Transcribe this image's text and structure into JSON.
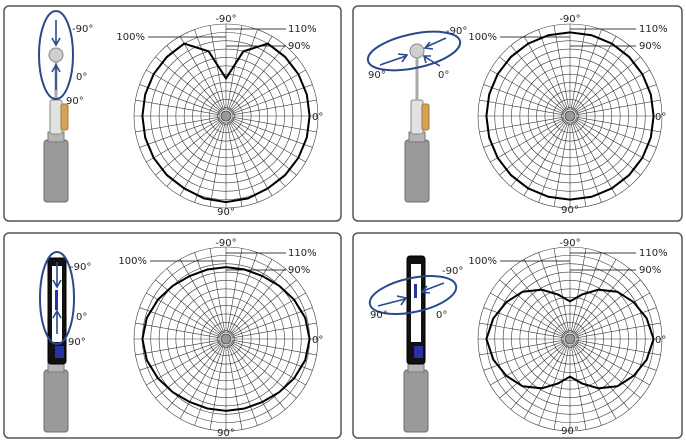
{
  "colors": {
    "callout": "#2a4a8e",
    "grid": "#3a3a3a",
    "curve": "#000000",
    "frame": "#555555",
    "body_gray": "#9a9a9a",
    "accent_orange": "#d4a35a",
    "accent_blue": "#2431a8"
  },
  "panels": [
    {
      "id": "panel-top-left",
      "device": "rod-vertical",
      "callout": "vertical",
      "labels": {
        "top": "-90°",
        "bottom": "90°",
        "side": "0°",
        "r110": "110%",
        "r100": "100%",
        "r90": "90%",
        "device_top": "-90°",
        "device_mid": "0°",
        "device_low": "90°",
        "device_left": ""
      }
    },
    {
      "id": "panel-top-right",
      "device": "rod-horizontal",
      "callout": "horizontal",
      "labels": {
        "top": "-90°",
        "bottom": "90°",
        "side": "0°",
        "r110": "110%",
        "r100": "100%",
        "r90": "90%",
        "device_top": "-90°",
        "device_mid": "0°",
        "device_low": "",
        "device_left": "90°"
      }
    },
    {
      "id": "panel-bottom-left",
      "device": "tube-vertical",
      "callout": "vertical",
      "labels": {
        "top": "-90°",
        "bottom": "90°",
        "side": "0°",
        "r110": "110%",
        "r100": "100%",
        "r90": "90%",
        "device_top": "-90°",
        "device_mid": "0°",
        "device_low": "90°",
        "device_left": ""
      }
    },
    {
      "id": "panel-bottom-right",
      "device": "tube-horizontal",
      "callout": "horizontal",
      "labels": {
        "top": "-90°",
        "bottom": "90°",
        "side": "0°",
        "r110": "110%",
        "r100": "100%",
        "r90": "90%",
        "device_top": "-90°",
        "device_mid": "0°",
        "device_low": "",
        "device_left": "90°"
      }
    }
  ],
  "chart_data": [
    {
      "type": "polar",
      "id": "response-top-left",
      "radial_unit": "%",
      "rlim": [
        0,
        110
      ],
      "angles_deg": [
        0,
        15,
        30,
        45,
        60,
        75,
        90,
        105,
        120,
        135,
        150,
        165,
        180,
        195,
        210,
        225,
        240,
        255,
        270,
        285,
        300,
        315,
        330,
        345
      ],
      "values": [
        100,
        100,
        100,
        100,
        100,
        102,
        103,
        102,
        100,
        100,
        100,
        100,
        100,
        100,
        100,
        100,
        100,
        80,
        45,
        80,
        100,
        100,
        100,
        100
      ]
    },
    {
      "type": "polar",
      "id": "response-top-right",
      "radial_unit": "%",
      "rlim": [
        0,
        110
      ],
      "angles_deg": [
        0,
        15,
        30,
        45,
        60,
        75,
        90,
        105,
        120,
        135,
        150,
        165,
        180,
        195,
        210,
        225,
        240,
        255,
        270,
        285,
        300,
        315,
        330,
        345
      ],
      "values": [
        100,
        100,
        100,
        100,
        100,
        100,
        100,
        100,
        100,
        100,
        100,
        100,
        100,
        100,
        100,
        100,
        100,
        100,
        100,
        100,
        100,
        100,
        100,
        100
      ]
    },
    {
      "type": "polar",
      "id": "response-bottom-left",
      "radial_unit": "%",
      "rlim": [
        0,
        110
      ],
      "angles_deg": [
        0,
        15,
        30,
        45,
        60,
        75,
        90,
        105,
        120,
        135,
        150,
        165,
        180,
        195,
        210,
        225,
        240,
        255,
        270,
        285,
        300,
        315,
        330,
        345
      ],
      "values": [
        100,
        98,
        94,
        90,
        87,
        86,
        86,
        86,
        87,
        90,
        94,
        98,
        100,
        98,
        94,
        90,
        87,
        86,
        86,
        86,
        87,
        90,
        94,
        98
      ]
    },
    {
      "type": "polar",
      "id": "response-bottom-right",
      "radial_unit": "%",
      "rlim": [
        0,
        110
      ],
      "angles_deg": [
        0,
        15,
        30,
        45,
        60,
        75,
        90,
        105,
        120,
        135,
        150,
        165,
        180,
        195,
        210,
        225,
        240,
        255,
        270,
        285,
        300,
        315,
        330,
        345
      ],
      "values": [
        100,
        95,
        88,
        80,
        68,
        55,
        45,
        55,
        68,
        80,
        88,
        95,
        100,
        95,
        88,
        80,
        68,
        55,
        45,
        55,
        68,
        80,
        88,
        95
      ]
    }
  ]
}
